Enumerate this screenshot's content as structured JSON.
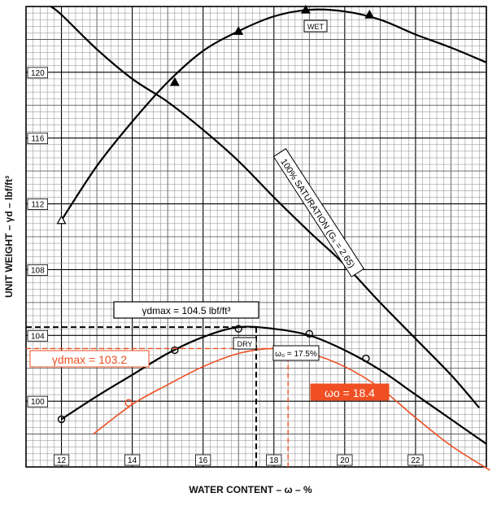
{
  "chart_data": {
    "type": "line",
    "xlabel": "WATER CONTENT – ω – %",
    "ylabel": "UNIT WEIGHT – γd – lbf/ft³",
    "xlim": [
      11,
      24
    ],
    "ylim": [
      96,
      124
    ],
    "x_ticks": [
      12,
      14,
      16,
      18,
      20,
      22
    ],
    "y_ticks": [
      100,
      104,
      108,
      112,
      116,
      120
    ],
    "grid": true,
    "series": [
      {
        "name": "WET",
        "marker": "triangle",
        "color": "#000000",
        "points": [
          [
            12,
            111.0
          ],
          [
            13,
            114.3
          ],
          [
            14,
            117.0
          ],
          [
            15,
            119.4
          ],
          [
            16,
            121.3
          ],
          [
            17,
            122.5
          ],
          [
            18,
            123.4
          ],
          [
            19,
            123.8
          ],
          [
            20,
            123.7
          ],
          [
            21,
            123.2
          ],
          [
            22,
            122.3
          ],
          [
            23,
            121.5
          ],
          [
            24,
            120.6
          ]
        ],
        "markers": [
          [
            12,
            111.0
          ],
          [
            15.2,
            119.4
          ],
          [
            17.0,
            122.5
          ],
          [
            18.9,
            123.8
          ],
          [
            20.7,
            123.5
          ]
        ]
      },
      {
        "name": "DRY",
        "marker": "circle",
        "color": "#000000",
        "points": [
          [
            12,
            98.9
          ],
          [
            13,
            100.3
          ],
          [
            14,
            101.6
          ],
          [
            15,
            102.9
          ],
          [
            16,
            103.9
          ],
          [
            17,
            104.5
          ],
          [
            18,
            104.4
          ],
          [
            19,
            104.0
          ],
          [
            20,
            103.1
          ],
          [
            21,
            101.9
          ],
          [
            22,
            100.4
          ],
          [
            23,
            98.9
          ],
          [
            24,
            97.4
          ]
        ],
        "markers": [
          [
            12,
            98.9
          ],
          [
            15.2,
            103.1
          ],
          [
            17.0,
            104.4
          ],
          [
            19.0,
            104.1
          ],
          [
            20.6,
            102.6
          ]
        ]
      },
      {
        "name": "100% SATURATION (Gs = 2.65)",
        "marker": "none",
        "color": "#000000",
        "points": [
          [
            11.7,
            124.0
          ],
          [
            12,
            123.5
          ],
          [
            13,
            121.4
          ],
          [
            14,
            119.6
          ],
          [
            15,
            118.2
          ],
          [
            16,
            116.5
          ],
          [
            17,
            114.6
          ],
          [
            18,
            112.4
          ],
          [
            19,
            110.3
          ],
          [
            20,
            108.3
          ],
          [
            21,
            106.0
          ],
          [
            22,
            103.8
          ],
          [
            23,
            101.6
          ],
          [
            23.8,
            99.6
          ]
        ],
        "markers": []
      },
      {
        "name": "",
        "marker": "circle",
        "color": "#ef4f22",
        "points": [
          [
            12.9,
            98.0
          ],
          [
            14,
            99.8
          ],
          [
            15,
            101.0
          ],
          [
            16,
            102.1
          ],
          [
            17,
            102.9
          ],
          [
            18,
            103.2
          ],
          [
            19,
            102.9
          ],
          [
            20,
            102.1
          ],
          [
            21,
            100.8
          ],
          [
            22,
            99.0
          ],
          [
            23,
            97.3
          ],
          [
            24.1,
            95.8
          ]
        ],
        "markers": [
          [
            13.9,
            99.9
          ]
        ]
      }
    ],
    "annotations": {
      "wet_label": "WET",
      "dry_label": "DRY",
      "saturation_label": "100% SATURATION (Gₛ = 2.65)",
      "gdmax_black": "γdmax = 104.5 lbf/ft³",
      "wo_black": "ω₀ = 17.5%",
      "gdmax_orange": "γdmax = 103.2",
      "wo_orange": "ωo = 18.4"
    },
    "reference_lines": {
      "black_gdmax_y": 104.5,
      "black_wo_x": 17.5,
      "orange_gdmax_y": 103.2,
      "orange_wo_x": 18.4
    },
    "colors": {
      "black": "#000000",
      "orange": "#ef4f22",
      "grid_major": "#000000",
      "grid_minor": "#7a7a7a"
    }
  }
}
